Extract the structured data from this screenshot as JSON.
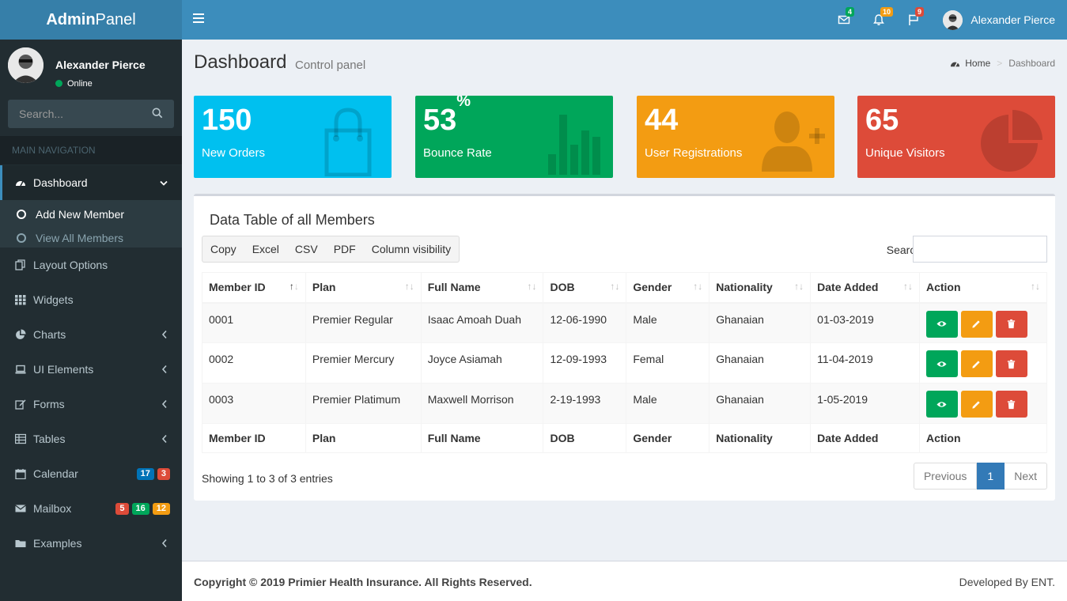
{
  "brand": {
    "bold": "Admin",
    "light": "Panel"
  },
  "header": {
    "notifications": [
      {
        "icon": "envelope-icon",
        "count": "4",
        "color": "#00a65a"
      },
      {
        "icon": "bell-icon",
        "count": "10",
        "color": "#f39c12"
      },
      {
        "icon": "flag-icon",
        "count": "9",
        "color": "#dd4b39"
      }
    ],
    "user_name": "Alexander Pierce"
  },
  "sidebar": {
    "user_name": "Alexander Pierce",
    "status": "Online",
    "search_placeholder": "Search...",
    "nav_header": "MAIN NAVIGATION",
    "items": [
      {
        "label": "Dashboard",
        "icon": "dashboard-icon"
      },
      {
        "label": "Layout Options",
        "icon": "files-icon"
      },
      {
        "label": "Widgets",
        "icon": "th-icon"
      },
      {
        "label": "Charts",
        "icon": "pie-chart-icon"
      },
      {
        "label": "UI Elements",
        "icon": "laptop-icon"
      },
      {
        "label": "Forms",
        "icon": "edit-icon"
      },
      {
        "label": "Tables",
        "icon": "table-icon"
      },
      {
        "label": "Calendar",
        "icon": "calendar-icon",
        "badges": [
          {
            "text": "17",
            "color": "#0073b7"
          },
          {
            "text": "3",
            "color": "#dd4b39"
          }
        ]
      },
      {
        "label": "Mailbox",
        "icon": "envelope-icon",
        "badges": [
          {
            "text": "5",
            "color": "#dd4b39"
          },
          {
            "text": "16",
            "color": "#00a65a"
          },
          {
            "text": "12",
            "color": "#f39c12"
          }
        ]
      },
      {
        "label": "Examples",
        "icon": "folder-icon"
      }
    ],
    "submenu": [
      {
        "label": "Add New Member"
      },
      {
        "label": "View All Members"
      }
    ]
  },
  "page": {
    "title": "Dashboard",
    "subtitle": "Control panel",
    "breadcrumb": {
      "home": "Home",
      "current": "Dashboard"
    }
  },
  "stats": [
    {
      "value": "150",
      "suffix": "",
      "label": "New Orders",
      "color": "#00c0ef",
      "icon": "shopping-bag-icon"
    },
    {
      "value": "53",
      "suffix": "%",
      "label": "Bounce Rate",
      "color": "#00a65a",
      "icon": "bar-chart-icon"
    },
    {
      "value": "44",
      "suffix": "",
      "label": "User Registrations",
      "color": "#f39c12",
      "icon": "person-add-icon"
    },
    {
      "value": "65",
      "suffix": "",
      "label": "Unique Visitors",
      "color": "#dd4b39",
      "icon": "pie-graph-icon"
    }
  ],
  "table": {
    "title": "Data Table of all Members",
    "buttons": [
      "Copy",
      "Excel",
      "CSV",
      "PDF",
      "Column visibility"
    ],
    "search_label": "Search:",
    "columns": [
      "Member ID",
      "Plan",
      "Full Name",
      "DOB",
      "Gender",
      "Nationality",
      "Date Added",
      "Action"
    ],
    "rows": [
      [
        "0001",
        "Premier Regular",
        "Isaac Amoah Duah",
        "12-06-1990",
        "Male",
        "Ghanaian",
        "01-03-2019"
      ],
      [
        "0002",
        "Premier Mercury",
        "Joyce Asiamah",
        "12-09-1993",
        "Femal",
        "Ghanaian",
        "11-04-2019"
      ],
      [
        "0003",
        "Premier Platimum",
        "Maxwell Morrison",
        "2-19-1993",
        "Male",
        "Ghanaian",
        "1-05-2019"
      ]
    ],
    "info": "Showing 1 to 3 of 3 entries",
    "pagination": {
      "previous": "Previous",
      "current": "1",
      "next": "Next"
    }
  },
  "footer": {
    "copyright": "Copyright © 2019 Primier Health Insurance. All Rights Reserved.",
    "developer": "Developed By ENT."
  }
}
